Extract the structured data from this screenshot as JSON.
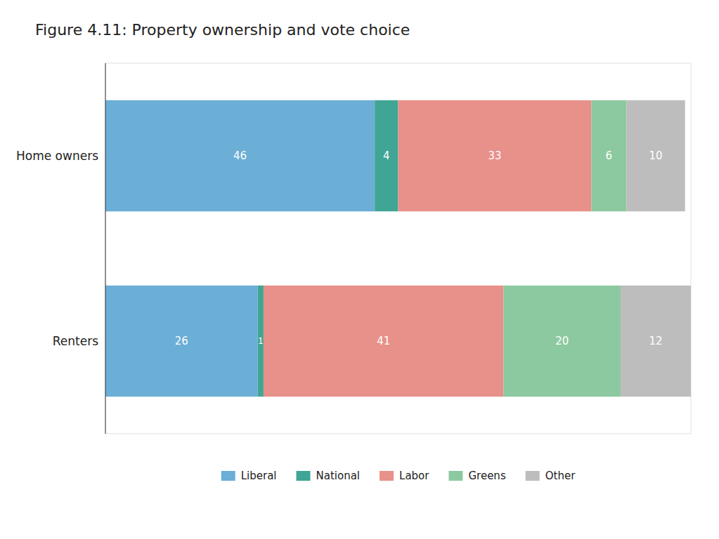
{
  "chart_data": {
    "type": "bar",
    "title": "Figure 4.11: Property ownership and vote choice",
    "orientation": "horizontal",
    "stacked": true,
    "data_labels": true,
    "tick_labels": "y",
    "legend": "bottom",
    "categories": [
      "Home owners",
      "Renters"
    ],
    "xlim": [
      0,
      100
    ],
    "series": [
      {
        "name": "Liberal",
        "color": "#6baed6",
        "values": [
          46,
          26
        ]
      },
      {
        "name": "National",
        "color": "#41a595",
        "values": [
          4,
          1
        ]
      },
      {
        "name": "Labor",
        "color": "#e8908a",
        "values": [
          33,
          41
        ]
      },
      {
        "name": "Greens",
        "color": "#8dc9a0",
        "values": [
          6,
          20
        ]
      },
      {
        "name": "Other",
        "color": "#bdbdbd",
        "values": [
          10,
          12
        ]
      }
    ]
  }
}
